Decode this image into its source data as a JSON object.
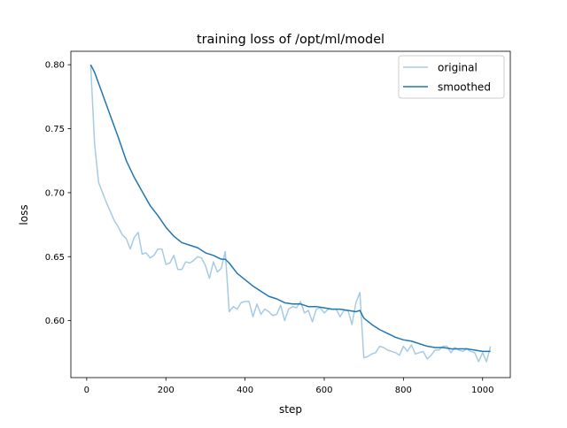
{
  "chart_data": {
    "type": "line",
    "title": "training loss of /opt/ml/model",
    "xlabel": "step",
    "ylabel": "loss",
    "xlim": [
      -40,
      1070
    ],
    "ylim": [
      0.5555,
      0.8105
    ],
    "xticks": [
      0,
      200,
      400,
      600,
      800,
      1000
    ],
    "xtick_labels": [
      "0",
      "200",
      "400",
      "600",
      "800",
      "1000"
    ],
    "yticks": [
      0.6,
      0.65,
      0.7,
      0.75,
      0.8
    ],
    "ytick_labels": [
      "0.60",
      "0.65",
      "0.70",
      "0.75",
      "0.80"
    ],
    "grid": false,
    "legend": "top-right",
    "series": [
      {
        "name": "original",
        "color": "#a6cbe3",
        "x": [
          10,
          20,
          30,
          40,
          50,
          60,
          70,
          80,
          90,
          100,
          110,
          120,
          130,
          140,
          150,
          160,
          170,
          180,
          190,
          200,
          210,
          220,
          230,
          240,
          250,
          260,
          270,
          280,
          290,
          300,
          310,
          320,
          330,
          340,
          350,
          360,
          370,
          380,
          390,
          400,
          410,
          420,
          430,
          440,
          450,
          460,
          470,
          480,
          490,
          500,
          510,
          520,
          530,
          540,
          550,
          560,
          570,
          580,
          590,
          600,
          610,
          620,
          630,
          640,
          650,
          660,
          670,
          680,
          690,
          700,
          710,
          720,
          730,
          740,
          750,
          760,
          770,
          780,
          790,
          800,
          810,
          820,
          830,
          840,
          850,
          860,
          870,
          880,
          890,
          900,
          910,
          920,
          930,
          940,
          950,
          960,
          970,
          980,
          990,
          1000,
          1010,
          1020
        ],
        "y": [
          0.8,
          0.738,
          0.708,
          0.7,
          0.692,
          0.685,
          0.678,
          0.673,
          0.667,
          0.664,
          0.656,
          0.665,
          0.669,
          0.652,
          0.653,
          0.649,
          0.651,
          0.656,
          0.656,
          0.644,
          0.645,
          0.651,
          0.64,
          0.64,
          0.646,
          0.645,
          0.647,
          0.65,
          0.649,
          0.643,
          0.633,
          0.646,
          0.638,
          0.641,
          0.654,
          0.607,
          0.611,
          0.609,
          0.614,
          0.615,
          0.615,
          0.603,
          0.613,
          0.605,
          0.609,
          0.607,
          0.604,
          0.605,
          0.612,
          0.6,
          0.609,
          0.611,
          0.61,
          0.615,
          0.606,
          0.608,
          0.599,
          0.609,
          0.61,
          0.606,
          0.609,
          0.609,
          0.609,
          0.603,
          0.608,
          0.608,
          0.597,
          0.614,
          0.622,
          0.571,
          0.572,
          0.574,
          0.575,
          0.58,
          0.579,
          0.577,
          0.576,
          0.575,
          0.573,
          0.58,
          0.576,
          0.581,
          0.574,
          0.575,
          0.576,
          0.57,
          0.573,
          0.577,
          0.577,
          0.58,
          0.58,
          0.575,
          0.579,
          0.577,
          0.576,
          0.578,
          0.576,
          0.575,
          0.568,
          0.575,
          0.568,
          0.58
        ]
      },
      {
        "name": "smoothed",
        "color": "#1f77b4",
        "x": [
          10,
          20,
          40,
          60,
          80,
          100,
          120,
          140,
          160,
          180,
          200,
          220,
          240,
          260,
          280,
          300,
          320,
          340,
          350,
          360,
          380,
          400,
          420,
          440,
          460,
          480,
          500,
          520,
          540,
          560,
          580,
          600,
          620,
          640,
          660,
          680,
          690,
          700,
          720,
          740,
          760,
          780,
          800,
          820,
          840,
          860,
          880,
          900,
          920,
          940,
          960,
          980,
          1000,
          1020
        ],
        "y": [
          0.8,
          0.794,
          0.777,
          0.76,
          0.743,
          0.725,
          0.712,
          0.701,
          0.69,
          0.682,
          0.673,
          0.666,
          0.661,
          0.659,
          0.657,
          0.653,
          0.651,
          0.648,
          0.648,
          0.645,
          0.637,
          0.632,
          0.627,
          0.623,
          0.619,
          0.617,
          0.614,
          0.613,
          0.613,
          0.611,
          0.611,
          0.61,
          0.609,
          0.609,
          0.608,
          0.607,
          0.608,
          0.602,
          0.597,
          0.593,
          0.59,
          0.587,
          0.585,
          0.584,
          0.582,
          0.58,
          0.579,
          0.579,
          0.578,
          0.578,
          0.578,
          0.577,
          0.576,
          0.576
        ]
      }
    ]
  }
}
